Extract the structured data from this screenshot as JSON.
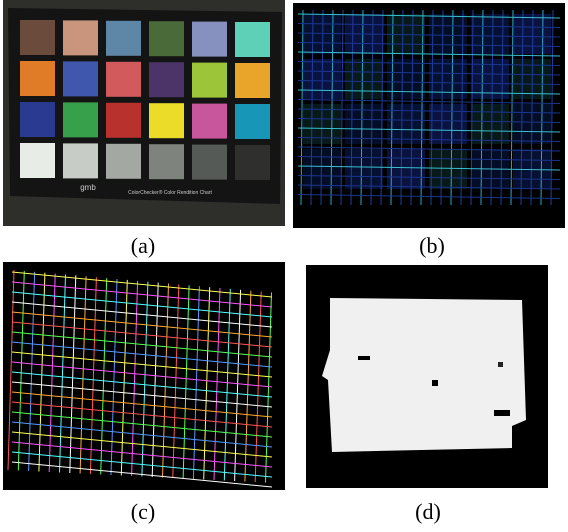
{
  "panels": [
    {
      "label": "(a)",
      "image_text": [
        "gmb",
        "ColorChecker® Color Rendition Chart"
      ]
    },
    {
      "label": "(b)"
    },
    {
      "label": "(c)"
    },
    {
      "label": "(d)"
    }
  ]
}
